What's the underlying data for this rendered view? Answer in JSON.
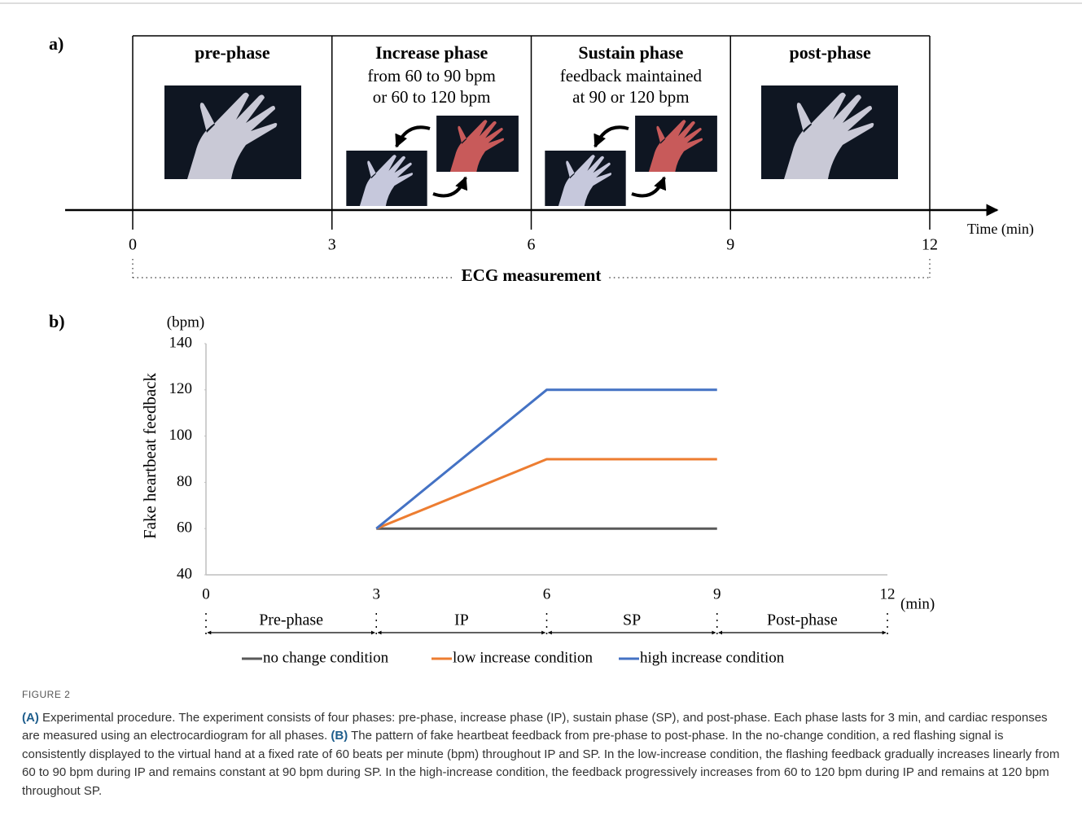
{
  "panel_a": {
    "label": "a)",
    "phases": [
      {
        "title": "pre-phase",
        "lines": []
      },
      {
        "title": "Increase phase",
        "lines": [
          "from 60 to 90 bpm",
          "or 60 to 120 bpm"
        ]
      },
      {
        "title": "Sustain phase",
        "lines": [
          "feedback maintained",
          "at 90 or 120 bpm"
        ]
      },
      {
        "title": "post-phase",
        "lines": []
      }
    ],
    "ticks": [
      0,
      3,
      6,
      9,
      12
    ],
    "axis_label": "Time (min)",
    "measurement": "ECG measurement"
  },
  "chart_data": {
    "type": "line",
    "label": "b)",
    "y_unit": "(bpm)",
    "x_unit": "(min)",
    "ylabel": "Fake heartbeat feedback",
    "x": [
      3,
      6,
      9
    ],
    "series": [
      {
        "name": "no change condition",
        "color": "#595959",
        "values": [
          60,
          60,
          60
        ]
      },
      {
        "name": "low increase condition",
        "color": "#ed7d31",
        "values": [
          60,
          90,
          90
        ]
      },
      {
        "name": "high increase condition",
        "color": "#4472c4",
        "values": [
          60,
          120,
          120
        ]
      }
    ],
    "xlim": [
      0,
      12
    ],
    "xticks": [
      0,
      3,
      6,
      9,
      12
    ],
    "ylim": [
      40,
      140
    ],
    "yticks": [
      40,
      60,
      80,
      100,
      120,
      140
    ],
    "phases": [
      "Pre-phase",
      "IP",
      "SP",
      "Post-phase"
    ]
  },
  "caption": {
    "label": "FIGURE 2",
    "parts": [
      {
        "marker": "(A)",
        "text": "Experimental procedure. The experiment consists of four phases: pre-phase, increase phase (IP), sustain phase (SP), and post-phase. Each phase lasts for 3 min, and cardiac responses are measured using an electrocardiogram for all phases."
      },
      {
        "marker": "(B)",
        "text": "The pattern of fake heartbeat feedback from pre-phase to post-phase. In the no-change condition, a red flashing signal is consistently displayed to the virtual hand at a fixed rate of 60 beats per minute (bpm) throughout IP and SP. In the low-increase condition, the flashing feedback gradually increases linearly from 60 to 90 bpm during IP and remains constant at 90 bpm during SP. In the high-increase condition, the feedback progressively increases from 60 to 120 bpm during IP and remains at 120 bpm throughout SP."
      }
    ]
  }
}
